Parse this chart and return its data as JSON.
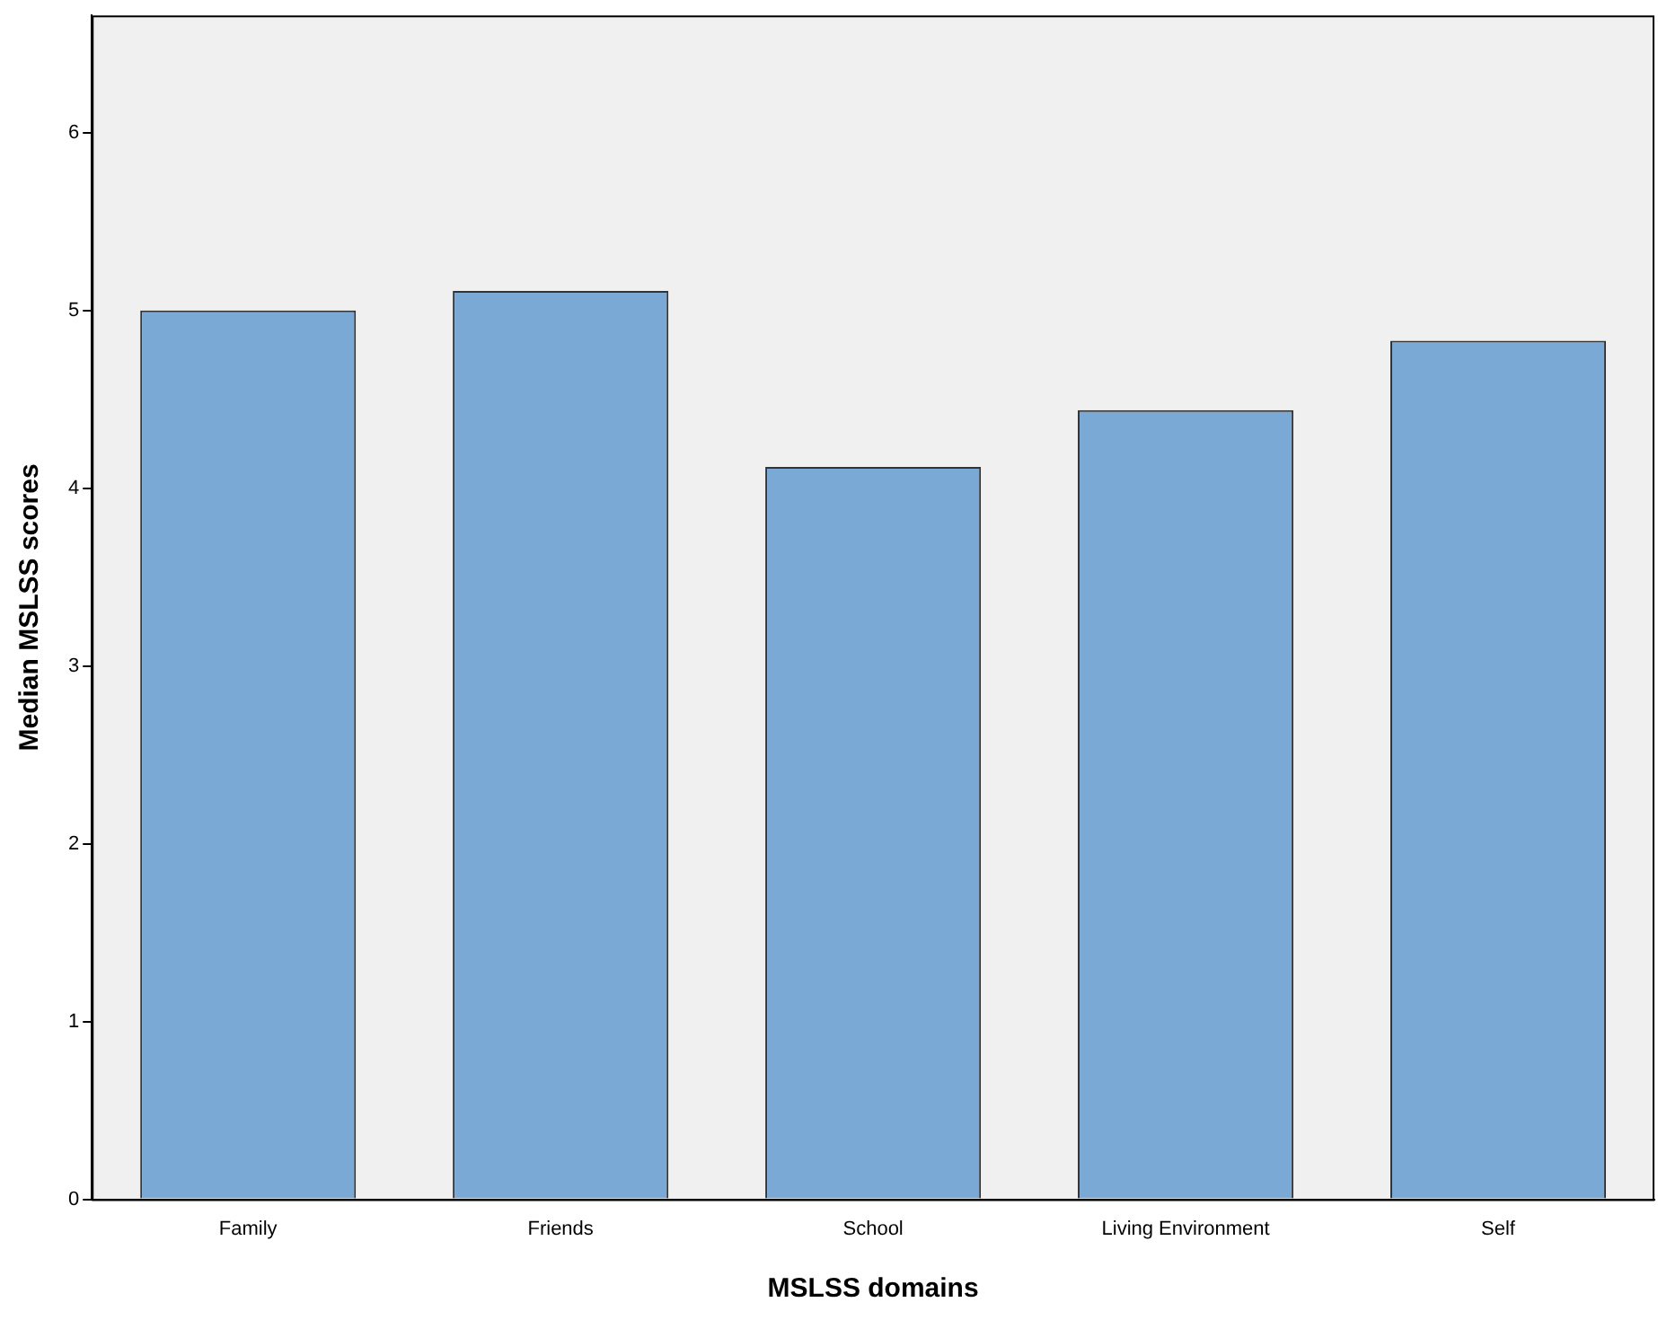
{
  "chart_data": {
    "type": "bar",
    "xlabel": "MSLSS domains",
    "ylabel": "Median MSLSS scores",
    "categories": [
      "Family",
      "Friends",
      "School",
      "Living Environment",
      "Self"
    ],
    "values": [
      5.0,
      5.11,
      4.12,
      4.44,
      4.83
    ],
    "color": "#7aa9d6",
    "ylim": [
      0,
      6.66
    ],
    "yticks": [
      0,
      1,
      2,
      3,
      4,
      5,
      6
    ],
    "grid": false,
    "legend": false
  }
}
